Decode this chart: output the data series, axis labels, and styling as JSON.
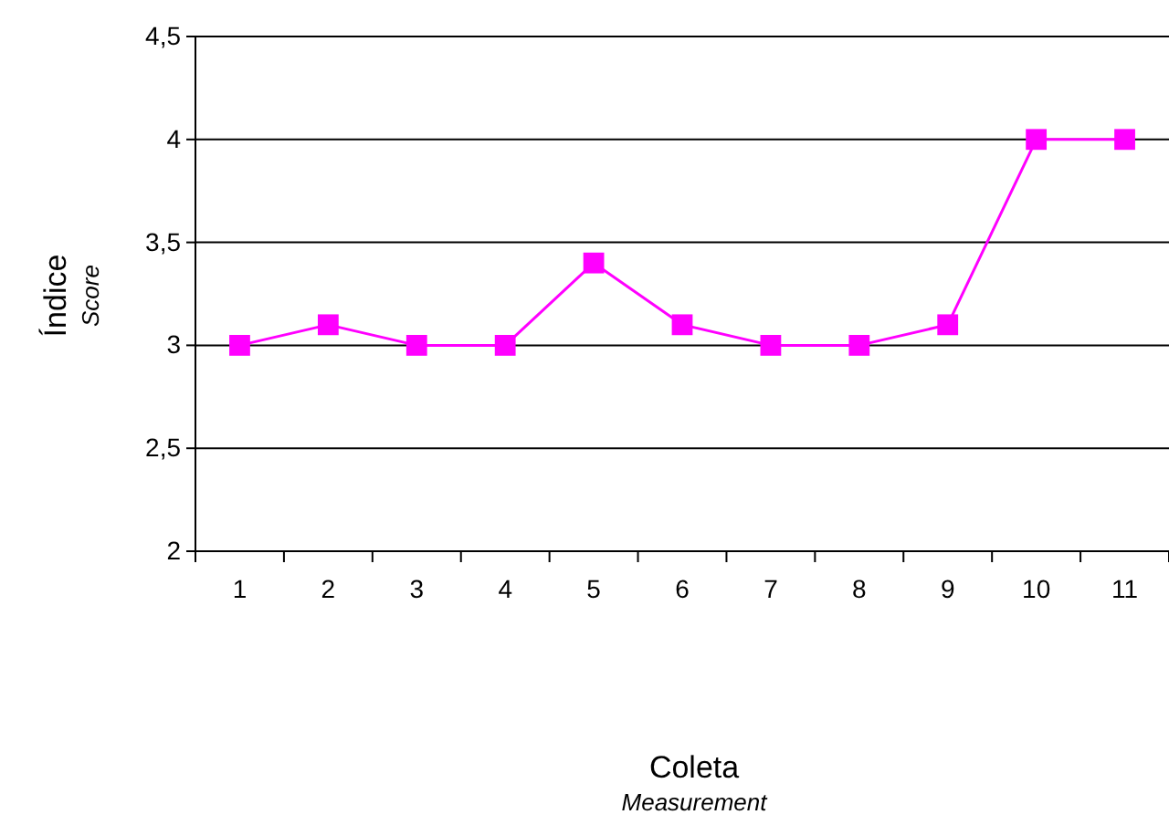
{
  "chart_data": {
    "type": "line",
    "xlabel": "Coleta\nMeasurement",
    "ylabel": "Índice\nScore",
    "categories": [
      "1",
      "2",
      "3",
      "4",
      "5",
      "6",
      "7",
      "8",
      "9",
      "10",
      "11"
    ],
    "series": [
      {
        "color": "#ff00ff",
        "values": [
          3,
          3.1,
          3,
          3,
          3.4,
          3.1,
          3,
          3,
          3.1,
          4,
          4
        ]
      }
    ],
    "ylim": [
      2,
      4.5
    ],
    "yticks": [
      2,
      {
        "value": 2.5,
        "label": "2,5"
      },
      3,
      {
        "value": 3.5,
        "label": "3,5"
      },
      4,
      {
        "value": 4.5,
        "label": "4,5"
      }
    ],
    "grid": "y",
    "marker": "square",
    "line_style": "solid"
  }
}
